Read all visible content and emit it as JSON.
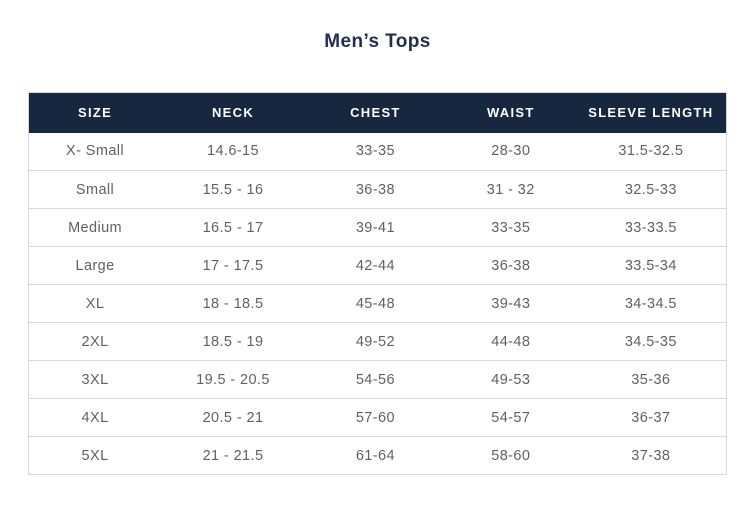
{
  "title": "Men’s Tops",
  "colors": {
    "header_bg": "#17273f",
    "header_text": "#ffffff",
    "title_text": "#1f2e52",
    "body_text": "#5f6264",
    "border": "#d9d9d9"
  },
  "table": {
    "columns": [
      "SIZE",
      "NECK",
      "CHEST",
      "WAIST",
      "SLEEVE LENGTH"
    ],
    "rows": [
      [
        "X- Small",
        "14.6-15",
        "33-35",
        "28-30",
        "31.5-32.5"
      ],
      [
        "Small",
        "15.5 - 16",
        "36-38",
        "31 - 32",
        "32.5-33"
      ],
      [
        "Medium",
        "16.5 - 17",
        "39-41",
        "33-35",
        "33-33.5"
      ],
      [
        "Large",
        "17 - 17.5",
        "42-44",
        "36-38",
        "33.5-34"
      ],
      [
        "XL",
        "18 - 18.5",
        "45-48",
        "39-43",
        "34-34.5"
      ],
      [
        "2XL",
        "18.5 - 19",
        "49-52",
        "44-48",
        "34.5-35"
      ],
      [
        "3XL",
        "19.5 - 20.5",
        "54-56",
        "49-53",
        "35-36"
      ],
      [
        "4XL",
        "20.5 - 21",
        "57-60",
        "54-57",
        "36-37"
      ],
      [
        "5XL",
        "21 - 21.5",
        "61-64",
        "58-60",
        "37-38"
      ]
    ]
  }
}
